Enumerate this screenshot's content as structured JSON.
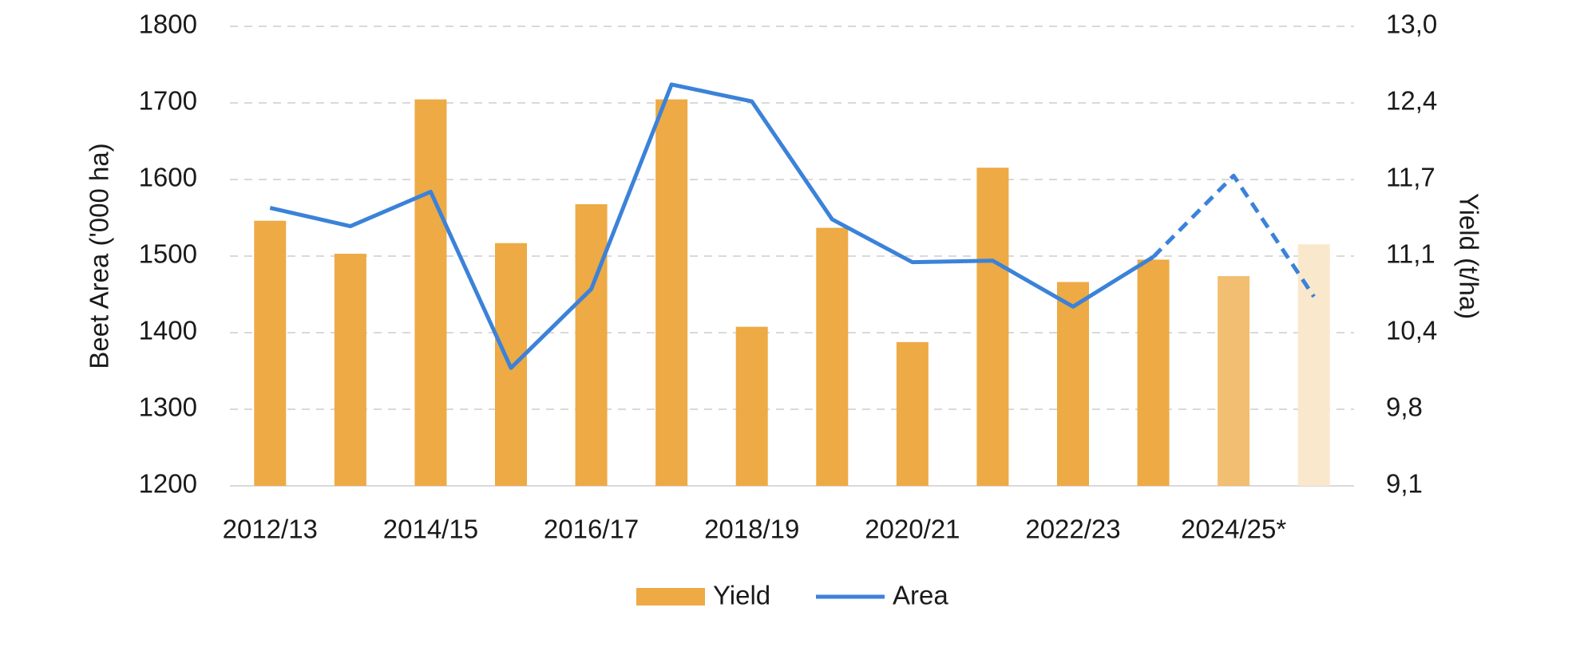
{
  "chart_data": {
    "type": "bar-line",
    "categories": [
      "2012/13",
      null,
      "2014/15",
      null,
      "2016/17",
      null,
      "2018/19",
      null,
      "2020/21",
      null,
      "2022/23",
      null,
      "2024/25*",
      null
    ],
    "y_axis_label": "Beet Area ('000 ha)",
    "y2_axis_label": "Yield (t/ha)",
    "ylim": [
      1200,
      1800
    ],
    "yticks": [
      1200,
      1300,
      1400,
      1500,
      1600,
      1700,
      1800
    ],
    "y2lim": [
      9.1,
      13.0
    ],
    "y2ticks": [
      {
        "value": 9.1,
        "label": "9,1"
      },
      {
        "value": 9.75,
        "label": "9,8"
      },
      {
        "value": 10.4,
        "label": "10,4"
      },
      {
        "value": 11.05,
        "label": "11,1"
      },
      {
        "value": 11.7,
        "label": "11,7"
      },
      {
        "value": 12.35,
        "label": "12,4"
      },
      {
        "value": 13.0,
        "label": "13,0"
      }
    ],
    "grid": true,
    "legend": "bottom",
    "series": [
      {
        "name": "Yield",
        "kind": "bar",
        "axis": "y2",
        "color": "#EDAA45",
        "bar_colors": [
          "#EDAA45",
          "#EDAA45",
          "#EDAA45",
          "#EDAA45",
          "#EDAA45",
          "#EDAA45",
          "#EDAA45",
          "#EDAA45",
          "#EDAA45",
          "#EDAA45",
          "#EDAA45",
          "#EDAA45",
          "#F2BE72",
          "#FAE8CC"
        ],
        "values": [
          11.35,
          11.07,
          12.38,
          11.16,
          11.49,
          12.38,
          10.45,
          11.29,
          10.32,
          11.8,
          10.83,
          11.02,
          10.88,
          11.15
        ]
      },
      {
        "name": "Area",
        "kind": "line",
        "axis": "y",
        "color": "#3B82D9",
        "dashed_from": 11,
        "values": [
          1563,
          1539,
          1584,
          1354,
          1457,
          1724,
          1702,
          1548,
          1492,
          1494,
          1434,
          1499,
          1605,
          1447
        ]
      }
    ]
  }
}
